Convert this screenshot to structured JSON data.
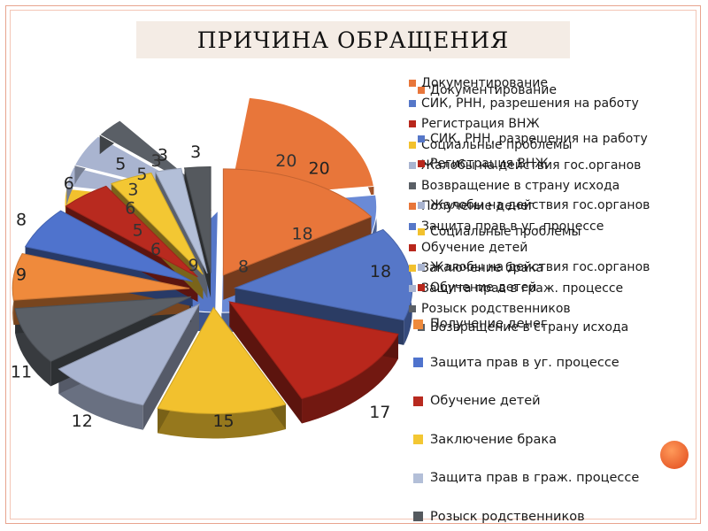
{
  "title": "ПРИЧИНА ОБРАЩЕНИЯ",
  "colors": {
    "title_bg": "#f4ece5",
    "frame": "#e8a48f",
    "accent_dot": "#e85a2a"
  },
  "chart_data": {
    "type": "pie",
    "style": "3d exploded",
    "title": "",
    "legend_placement": "right",
    "slices": [
      {
        "label": "Документирование",
        "value": 20,
        "color": "#e8763a"
      },
      {
        "label": "СИК, РНН, разрешения на работу",
        "value": 18,
        "color": "#5677c8"
      },
      {
        "label": "Регистрация ВНЖ",
        "value": 17,
        "color": "#b8271c"
      },
      {
        "label": "Социальные проблемы",
        "value": 15,
        "color": "#f2c12e"
      },
      {
        "label": "Жалобы на действия гос.органов",
        "value": 12,
        "color": "#a9b4d0"
      },
      {
        "label": "Возвращение в страну исхода",
        "value": 11,
        "color": "#5a5f66"
      },
      {
        "label": "Получение денег",
        "value": 9,
        "color": "#ef8a3c"
      },
      {
        "label": "Защита прав в уг. процессе",
        "value": 8,
        "color": "#4f73cd"
      },
      {
        "label": "Обучение детей",
        "value": 6,
        "color": "#b82a1f"
      },
      {
        "label": "Заключение брака",
        "value": 5,
        "color": "#f3c733"
      },
      {
        "label": "Защита прав в граж. процессе",
        "value": 3,
        "color": "#b3bfd8"
      },
      {
        "label": "Розыск родственников",
        "value": 3,
        "color": "#55595e"
      }
    ],
    "back_values": [
      20,
      18,
      8,
      9,
      6,
      5,
      6,
      3,
      5,
      3
    ],
    "back_colors": [
      "#e8763a",
      "#6a8ad6",
      "#6a8ad6",
      "#5677c8",
      "#b8271c",
      "#f2c12e",
      "#f2c12e",
      "#a9b4d0",
      "#a9b4d0",
      "#5a5f66"
    ],
    "legend_back": [
      {
        "label": "Документирование",
        "color": "#e8763a",
        "bold": true
      },
      {
        "label": "СИК, РНН, разрешения на работу",
        "color": "#5677c8",
        "bold": true
      },
      {
        "label": "Регистрация ВНЖ",
        "color": "#b8271c",
        "bold": true
      },
      {
        "label": "Социальные проблемы",
        "color": "#f2c12e",
        "bold": true
      },
      {
        "label": "Жалобы на действия  гос.органов",
        "color": "#a9b4d0",
        "bold": true
      },
      {
        "label": "Возвращение в страну исхода",
        "color": "#5a5f66",
        "bold": true
      },
      {
        "label": "Получение  денег",
        "color": "#e8763a",
        "bold": true
      },
      {
        "label": "Защита прав в уг. процессе",
        "color": "#5677c8",
        "bold": true
      },
      {
        "label": "Обучение детей",
        "color": "#b8271c",
        "bold": true
      },
      {
        "label": "Заключение брака",
        "color": "#f2c12e",
        "bold": true
      },
      {
        "label": "Защита прав в граж. процессе",
        "color": "#a9b4d0",
        "bold": true
      },
      {
        "label": "Розыск родственников",
        "color": "#5a5f66",
        "bold": true
      }
    ],
    "legend_front": [
      {
        "label": "Документирование",
        "color": "#e8763a"
      },
      {
        "label": "СИК, РНН, разрешения на работу",
        "color": "#5677c8"
      },
      {
        "label": "Регистрация ВНЖ",
        "color": "#b8271c"
      },
      {
        "label": "Жалобы на действия  гос.органов",
        "color": "#a9b4d0"
      },
      {
        "label": "Социальные проблемы",
        "color": "#f2c12e"
      },
      {
        "label": "Жалобы на действия  гос.органов",
        "color": "#a9b4d0"
      },
      {
        "label": "Обучение детей",
        "color": "#b8271c"
      },
      {
        "label": "Возвращение в страну исхода",
        "color": "#5a5f66"
      },
      {
        "label": "Получение  денег",
        "color": "#ef8a3c"
      },
      {
        "label": "Защита прав в уг. процессе",
        "color": "#4f73cd"
      },
      {
        "label": "Обучение детей",
        "color": "#b82a1f"
      },
      {
        "label": "Заключение брака",
        "color": "#f3c733"
      },
      {
        "label": "Защита прав в граж. процессе",
        "color": "#b3bfd8"
      },
      {
        "label": "Розыск родственников",
        "color": "#55595e"
      }
    ]
  }
}
